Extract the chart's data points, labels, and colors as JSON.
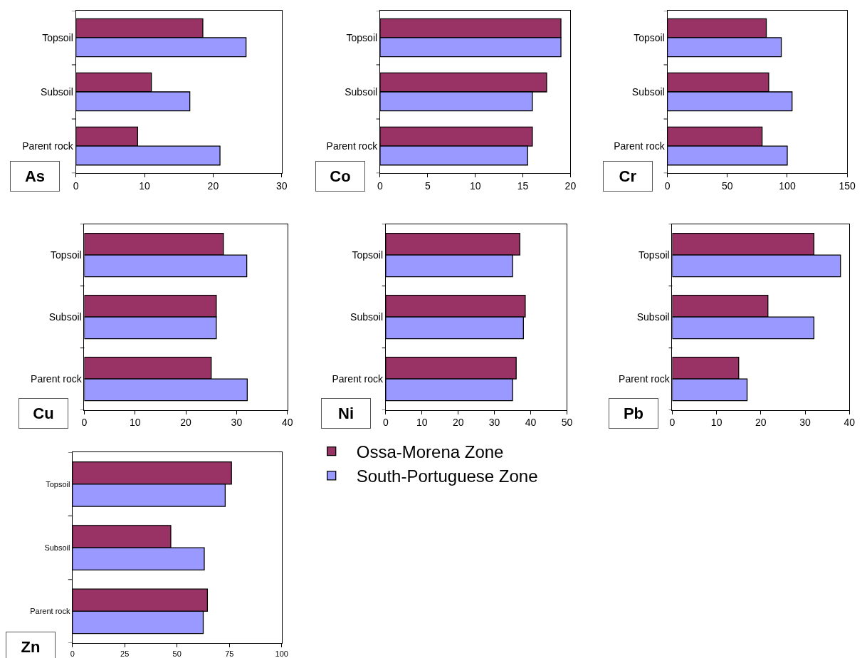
{
  "chart_data": [
    {
      "type": "bar",
      "orientation": "horizontal",
      "title": "As",
      "categories": [
        "Topsoil",
        "Subsoil",
        "Parent rock"
      ],
      "xlim": [
        0,
        30
      ],
      "xticks": [
        0,
        10,
        20,
        30
      ],
      "legend": "right",
      "series": [
        {
          "name": "Ossa-Morena Zone",
          "color": "#993366",
          "values": [
            18.5,
            11,
            9
          ]
        },
        {
          "name": "South-Portuguese Zone",
          "color": "#9999ff",
          "values": [
            24.8,
            16.6,
            21
          ]
        }
      ]
    },
    {
      "type": "bar",
      "orientation": "horizontal",
      "title": "Co",
      "categories": [
        "Topsoil",
        "Subsoil",
        "Parent rock"
      ],
      "xlim": [
        0,
        20
      ],
      "xticks": [
        0,
        5,
        10,
        15,
        20
      ],
      "series": [
        {
          "color": "#993366",
          "values": [
            19,
            17.5,
            16
          ]
        },
        {
          "color": "#9999ff",
          "values": [
            19,
            16,
            15.5
          ]
        }
      ]
    },
    {
      "type": "bar",
      "orientation": "horizontal",
      "title": "Cr",
      "categories": [
        "Topsoil",
        "Subsoil",
        "Parent rock"
      ],
      "xlim": [
        0,
        150
      ],
      "xticks": [
        0,
        50,
        100,
        150
      ],
      "series": [
        {
          "color": "#993366",
          "values": [
            82.5,
            84.5,
            79
          ]
        },
        {
          "color": "#9999ff",
          "values": [
            95,
            104,
            100
          ]
        }
      ]
    },
    {
      "type": "bar",
      "orientation": "horizontal",
      "title": "Cu",
      "categories": [
        "Topsoil",
        "Subsoil",
        "Parent rock"
      ],
      "xlim": [
        0,
        40
      ],
      "xticks": [
        0,
        10,
        20,
        30,
        40
      ],
      "series": [
        {
          "color": "#993366",
          "values": [
            27.4,
            26,
            25
          ]
        },
        {
          "color": "#9999ff",
          "values": [
            32,
            26,
            32.1
          ]
        }
      ]
    },
    {
      "type": "bar",
      "orientation": "horizontal",
      "title": "Ni",
      "categories": [
        "Topsoil",
        "Subsoil",
        "Parent rock"
      ],
      "xlim": [
        0,
        50
      ],
      "xticks": [
        0,
        10,
        20,
        30,
        40,
        50
      ],
      "series": [
        {
          "color": "#993366",
          "values": [
            37,
            38.5,
            36
          ]
        },
        {
          "color": "#9999ff",
          "values": [
            35,
            38,
            35
          ]
        }
      ]
    },
    {
      "type": "bar",
      "orientation": "horizontal",
      "title": "Pb",
      "categories": [
        "Topsoil",
        "Subsoil",
        "Parent rock"
      ],
      "xlim": [
        0,
        40
      ],
      "xticks": [
        0,
        10,
        20,
        30,
        40
      ],
      "series": [
        {
          "color": "#993366",
          "values": [
            32,
            21.6,
            15
          ]
        },
        {
          "color": "#9999ff",
          "values": [
            38,
            32,
            16.9
          ]
        }
      ]
    },
    {
      "type": "bar",
      "orientation": "horizontal",
      "title": "Zn",
      "categories": [
        "Topsoil",
        "Subsoil",
        "Parent rock"
      ],
      "xlim": [
        0,
        100
      ],
      "xticks": [
        0,
        25,
        50,
        75,
        100
      ],
      "series": [
        {
          "color": "#993366",
          "values": [
            76,
            47,
            64.5
          ]
        },
        {
          "color": "#9999ff",
          "values": [
            73,
            63,
            62.5
          ]
        }
      ]
    }
  ]
}
